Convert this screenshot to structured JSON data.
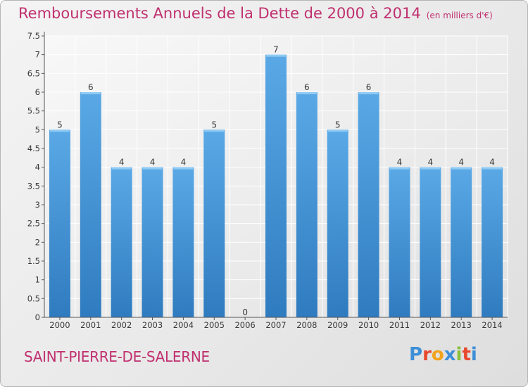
{
  "header": {
    "title": "Remboursements Annuels de la Dette de 2000 à 2014",
    "unit": "(en milliers d'€)"
  },
  "footer": {
    "commune": "SAINT-PIERRE-DE-SALERNE",
    "logo_letters": [
      "P",
      "r",
      "o",
      "x",
      "i",
      "t",
      "i"
    ],
    "logo_colors": [
      "#3d8fd6",
      "#e8482c",
      "#f2a31b",
      "#3d8fd6",
      "#8bbf3a",
      "#e8482c",
      "#3d8fd6"
    ]
  },
  "colors": {
    "bar": "#5aa9e6",
    "bar_dark": "#2f7bbf",
    "title": "#c0306f"
  },
  "chart_data": {
    "type": "bar",
    "title": "Remboursements Annuels de la Dette de 2000 à 2014",
    "xlabel": "",
    "ylabel": "",
    "categories": [
      "2000",
      "2001",
      "2002",
      "2003",
      "2004",
      "2005",
      "2006",
      "2007",
      "2008",
      "2009",
      "2010",
      "2011",
      "2012",
      "2013",
      "2014"
    ],
    "values": [
      5,
      6,
      4,
      4,
      4,
      5,
      0,
      7,
      6,
      5,
      6,
      4,
      4,
      4,
      4
    ],
    "value_labels": [
      "5",
      "6",
      "4",
      "4",
      "4",
      "5",
      "0",
      "7",
      "6",
      "5",
      "6",
      "4",
      "4",
      "4",
      "4"
    ],
    "yticks": [
      0,
      0.5,
      1,
      1.5,
      2,
      2.5,
      3,
      3.5,
      4,
      4.5,
      5,
      5.5,
      6,
      6.5,
      7,
      7.5
    ],
    "ytick_labels": [
      "0",
      "0.5",
      "1",
      "1.5",
      "2",
      "2.5",
      "3",
      "3.5",
      "4",
      "4.5",
      "5",
      "5.5",
      "6",
      "6.5",
      "7",
      "7.5"
    ],
    "ylim": [
      0,
      7.5
    ],
    "grid": true
  }
}
